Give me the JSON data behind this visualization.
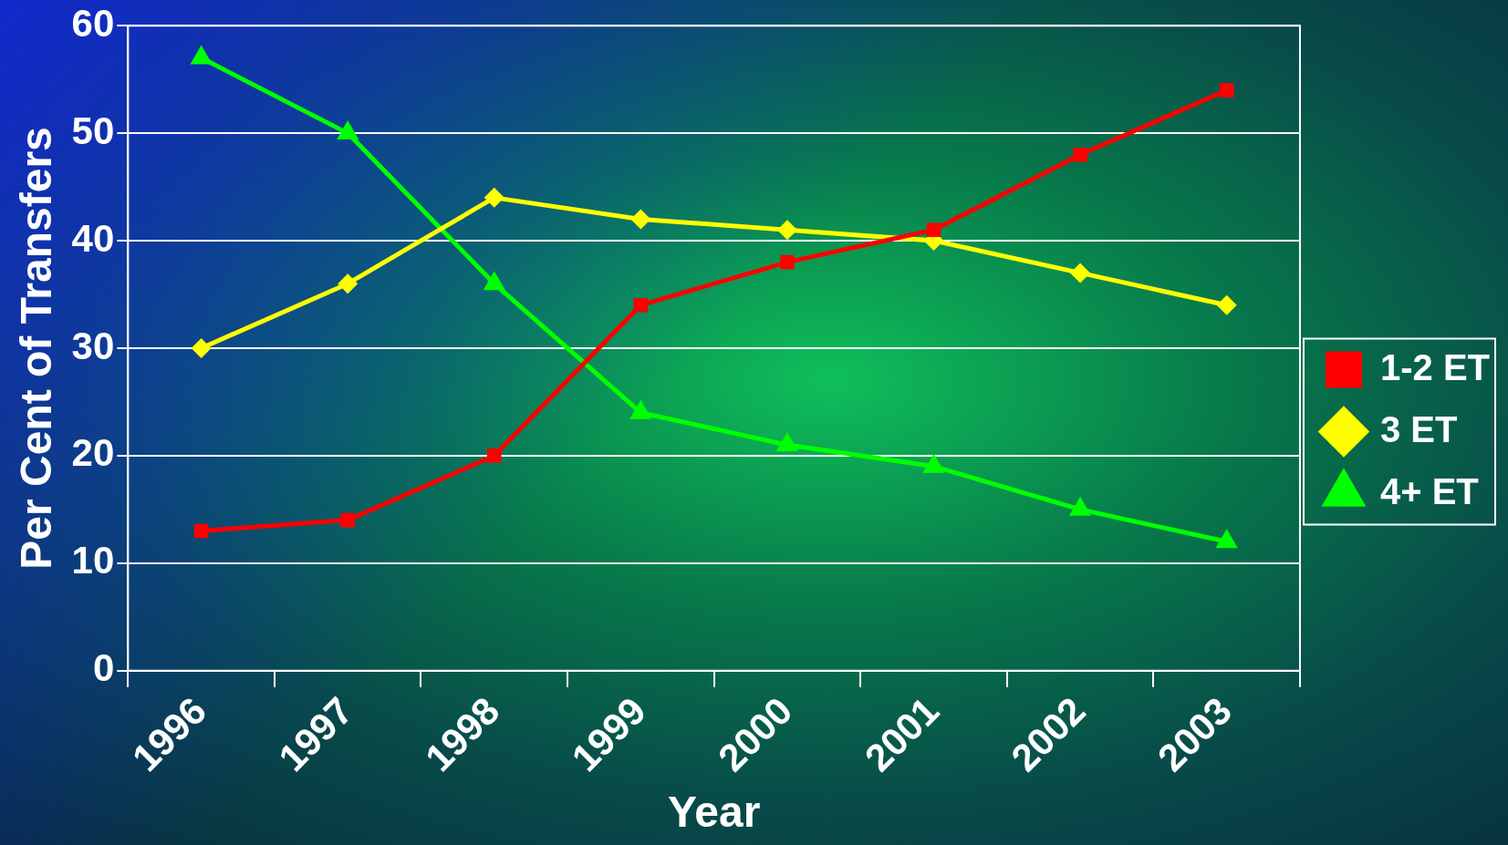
{
  "chart_data": {
    "type": "line",
    "xlabel": "Year",
    "ylabel": "Per Cent of Transfers",
    "categories": [
      "1996",
      "1997",
      "1998",
      "1999",
      "2000",
      "2001",
      "2002",
      "2003"
    ],
    "series": [
      {
        "name": "1-2 ET",
        "color": "#ff0000",
        "marker": "square",
        "values": [
          13,
          14,
          20,
          34,
          38,
          41,
          48,
          54
        ]
      },
      {
        "name": "3 ET",
        "color": "#ffff00",
        "marker": "diamond",
        "values": [
          30,
          36,
          44,
          42,
          41,
          40,
          37,
          34
        ]
      },
      {
        "name": "4+ ET",
        "color": "#00ff00",
        "marker": "triangle",
        "values": [
          57,
          50,
          36,
          24,
          21,
          19,
          15,
          12
        ]
      }
    ],
    "ylim": [
      0,
      60
    ],
    "yticks": [
      0,
      10,
      20,
      30,
      40,
      50,
      60
    ],
    "grid": "y",
    "legend": "right",
    "line_style": "solid"
  }
}
